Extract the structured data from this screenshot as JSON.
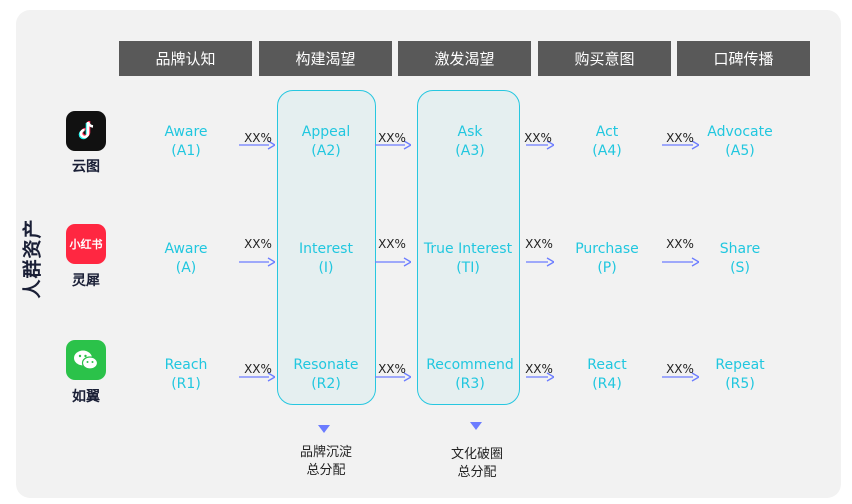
{
  "headers": [
    "品牌认知",
    "构建渴望",
    "激发渴望",
    "购买意图",
    "口碑传播"
  ],
  "side_label": "人群资产",
  "platforms": [
    {
      "name": "云图",
      "icon": "tiktok-icon",
      "color": "#111111"
    },
    {
      "name": "灵犀",
      "icon": "xiaohongshu-icon",
      "color": "#ff2741",
      "logo_text": "小红书"
    },
    {
      "name": "如翼",
      "icon": "wechat-icon",
      "color": "#2bc24a"
    }
  ],
  "rows": [
    [
      {
        "label": "Aware",
        "code": "(A1)"
      },
      {
        "label": "Appeal",
        "code": "(A2)"
      },
      {
        "label": "Ask",
        "code": "(A3)"
      },
      {
        "label": "Act",
        "code": "(A4)"
      },
      {
        "label": "Advocate",
        "code": "(A5)"
      }
    ],
    [
      {
        "label": "Aware",
        "code": "(A)"
      },
      {
        "label": "Interest",
        "code": "(I)"
      },
      {
        "label": "True Interest",
        "code": "(TI)"
      },
      {
        "label": "Purchase",
        "code": "(P)"
      },
      {
        "label": "Share",
        "code": "(S)"
      }
    ],
    [
      {
        "label": "Reach",
        "code": "(R1)"
      },
      {
        "label": "Resonate",
        "code": "(R2)"
      },
      {
        "label": "Recommend",
        "code": "(R3)"
      },
      {
        "label": "React",
        "code": "(R4)"
      },
      {
        "label": "Repeat",
        "code": "(R5)"
      }
    ]
  ],
  "transition_label": "XX%",
  "notes": [
    {
      "line1": "品牌沉淀",
      "line2": "总分配"
    },
    {
      "line1": "文化破圈",
      "line2": "总分配"
    }
  ],
  "colors": {
    "accent": "#21c7df",
    "arrow": "#6b7cff",
    "header_bg": "#595959"
  }
}
